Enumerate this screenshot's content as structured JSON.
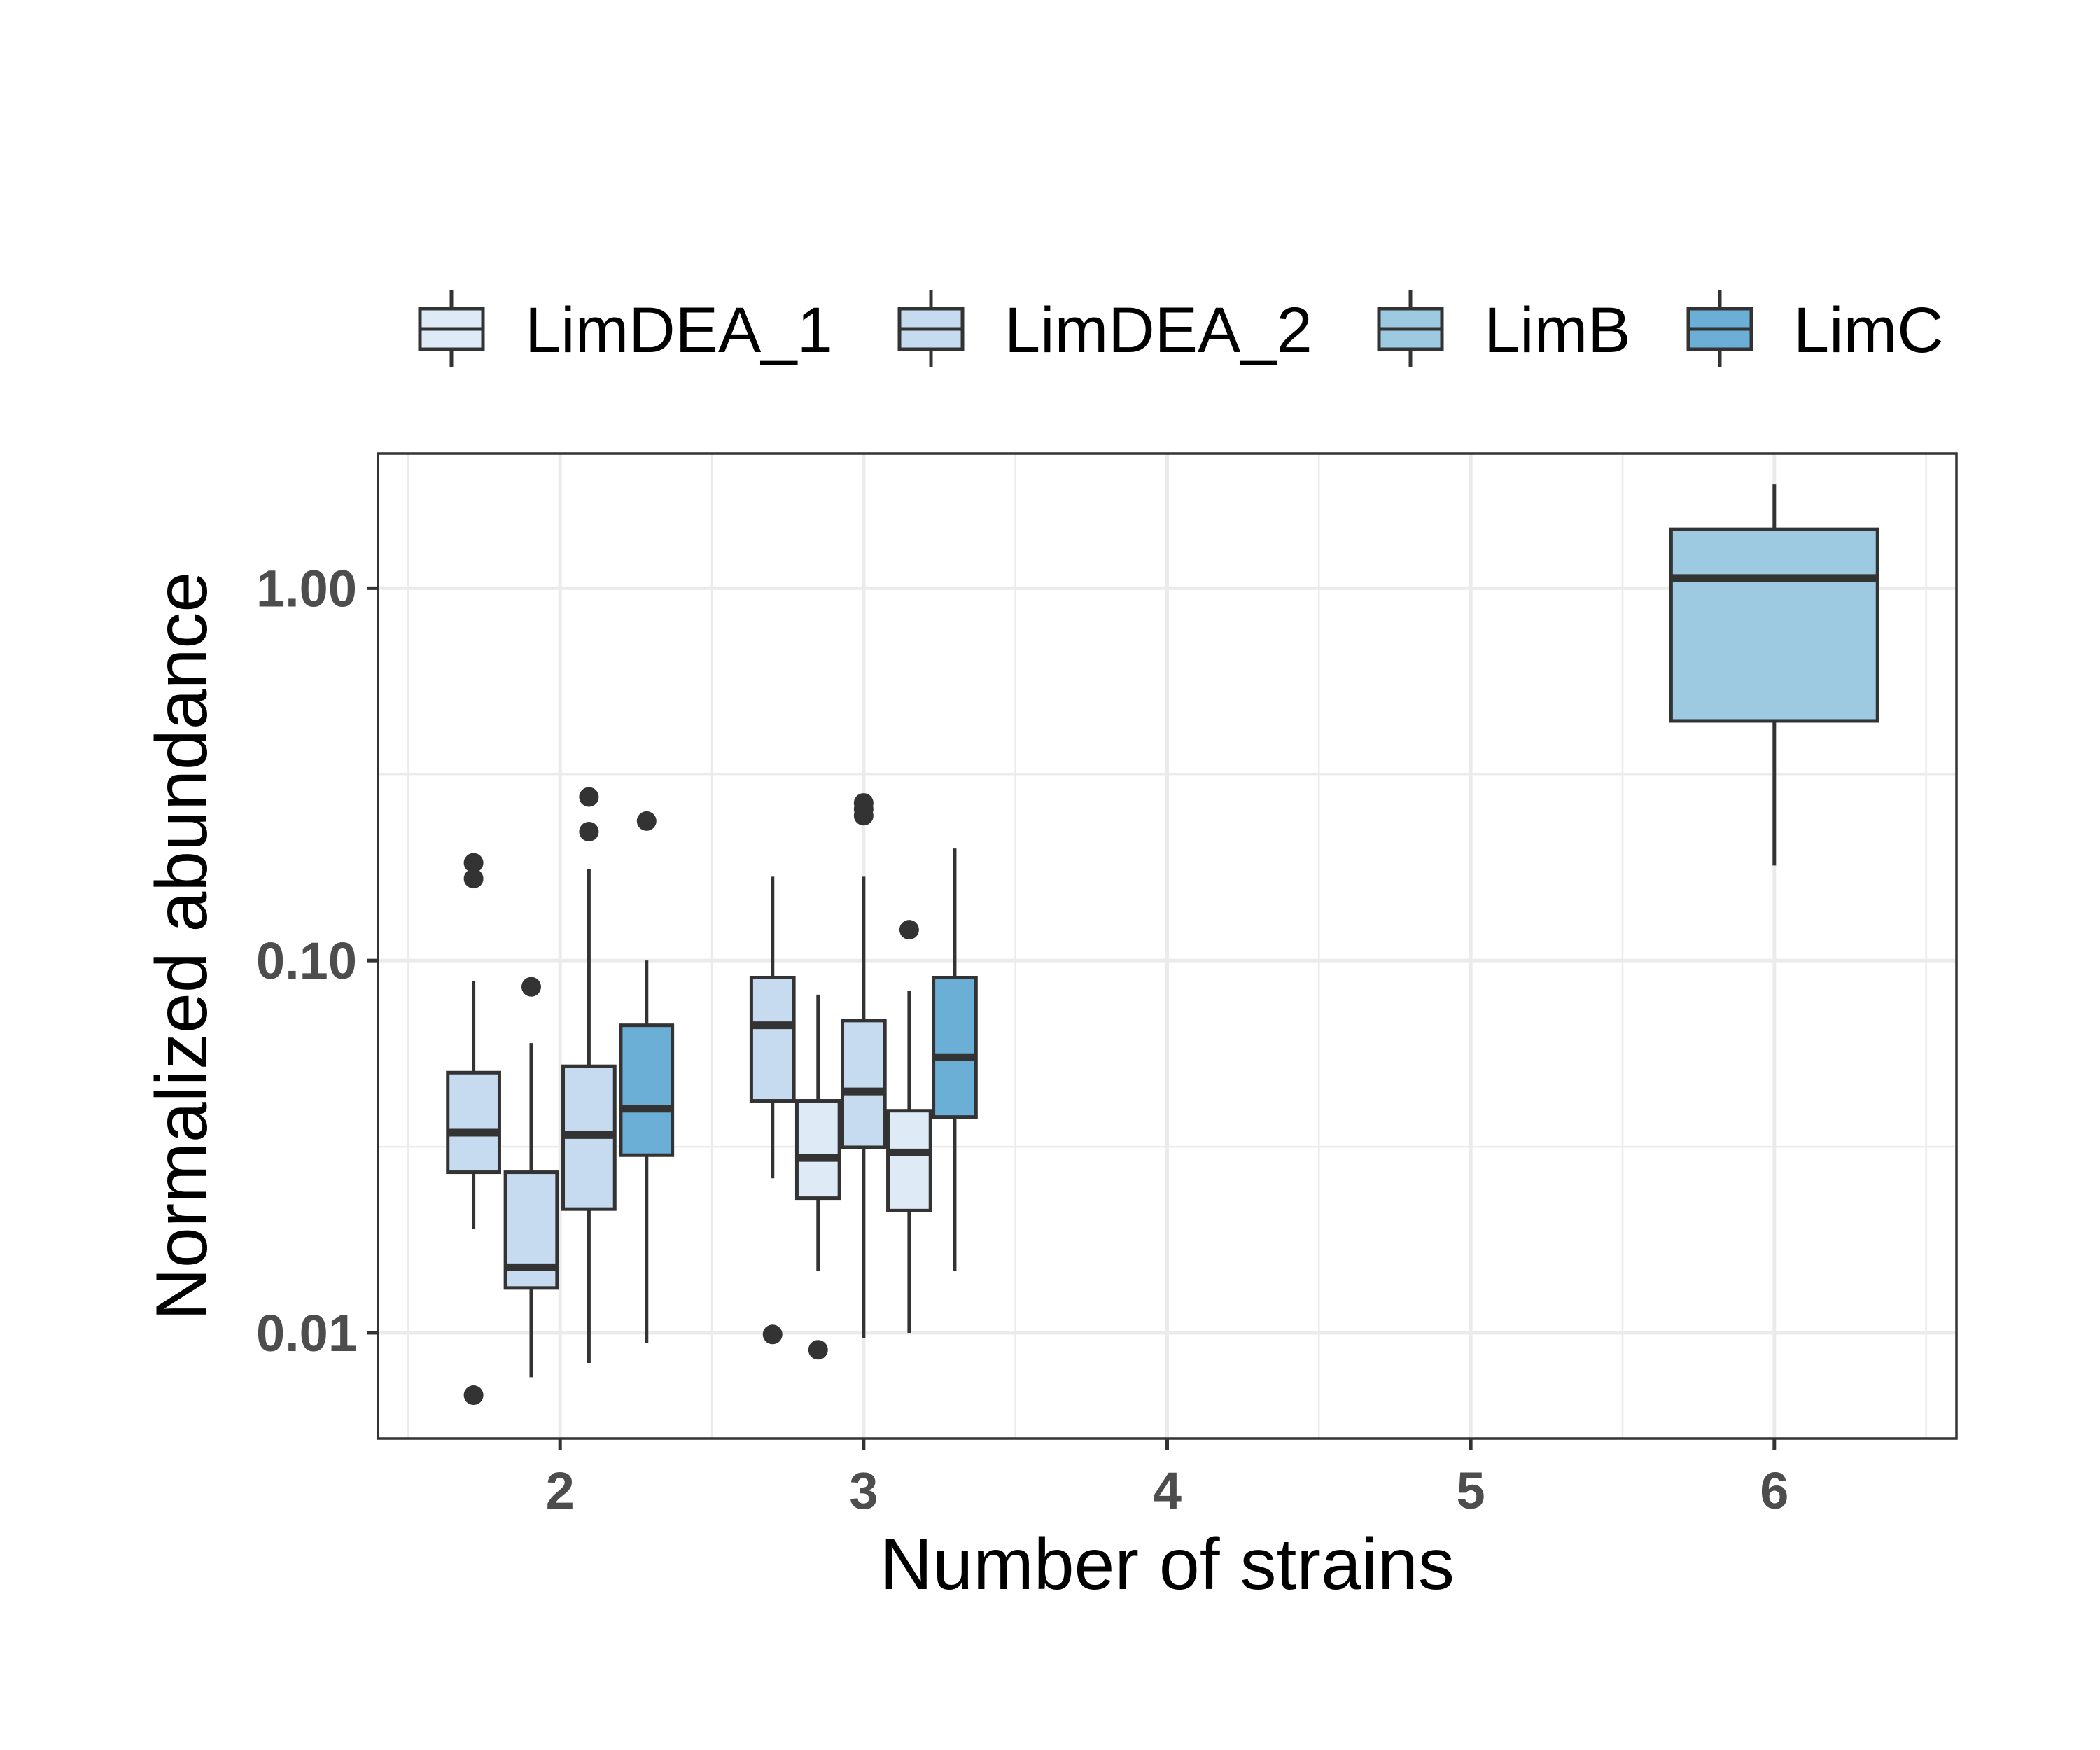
{
  "chart_data": {
    "type": "boxplot",
    "xlabel": "Number of strains",
    "ylabel": "Normalized abundance",
    "y_scale": "log10",
    "ylim": [
      0.0052,
      2.3
    ],
    "xlim": [
      1.4,
      6.6
    ],
    "x_ticks": [
      2,
      3,
      4,
      5,
      6
    ],
    "y_ticks": [
      {
        "value": 0.01,
        "label": "0.01"
      },
      {
        "value": 0.1,
        "label": "0.10"
      },
      {
        "value": 1.0,
        "label": "1.00"
      }
    ],
    "grid": true,
    "legend_position": "top",
    "series": [
      {
        "name": "LimDEA_1",
        "color": "#deebf7"
      },
      {
        "name": "LimDEA_2",
        "color": "#c6dbef"
      },
      {
        "name": "LimB",
        "color": "#9ecae1"
      },
      {
        "name": "LimC",
        "color": "#6baed6"
      }
    ],
    "boxes": [
      {
        "x": 2,
        "series": "LimDEA_2",
        "offset": -0.285,
        "lower": 0.019,
        "q1": 0.027,
        "median": 0.0345,
        "q3": 0.05,
        "upper": 0.088,
        "outliers": [
          0.183,
          0.166,
          0.0068
        ]
      },
      {
        "x": 2,
        "series": "LimDEA_2",
        "offset": -0.095,
        "lower": 0.0076,
        "q1": 0.0132,
        "median": 0.015,
        "q3": 0.027,
        "upper": 0.06,
        "outliers": [
          0.085
        ]
      },
      {
        "x": 2,
        "series": "LimDEA_2",
        "offset": 0.095,
        "lower": 0.0083,
        "q1": 0.0215,
        "median": 0.034,
        "q3": 0.052,
        "upper": 0.176,
        "outliers": [
          0.275,
          0.222
        ]
      },
      {
        "x": 2,
        "series": "LimC",
        "offset": 0.285,
        "lower": 0.0094,
        "q1": 0.03,
        "median": 0.04,
        "q3": 0.067,
        "upper": 0.1,
        "outliers": [
          0.237
        ]
      },
      {
        "x": 3,
        "series": "LimDEA_2",
        "offset": -0.3,
        "lower": 0.026,
        "q1": 0.042,
        "median": 0.067,
        "q3": 0.09,
        "upper": 0.168,
        "outliers": [
          0.0099
        ]
      },
      {
        "x": 3,
        "series": "LimDEA_1",
        "offset": -0.15,
        "lower": 0.0147,
        "q1": 0.023,
        "median": 0.0295,
        "q3": 0.042,
        "upper": 0.081,
        "outliers": [
          0.009
        ]
      },
      {
        "x": 3,
        "series": "LimDEA_2",
        "offset": 0.0,
        "lower": 0.0097,
        "q1": 0.0315,
        "median": 0.0445,
        "q3": 0.069,
        "upper": 0.168,
        "outliers": [
          0.265,
          0.255,
          0.245
        ]
      },
      {
        "x": 3,
        "series": "LimDEA_1",
        "offset": 0.15,
        "lower": 0.01,
        "q1": 0.0213,
        "median": 0.0305,
        "q3": 0.0395,
        "upper": 0.083,
        "outliers": [
          0.121
        ]
      },
      {
        "x": 3,
        "series": "LimC",
        "offset": 0.3,
        "lower": 0.0147,
        "q1": 0.038,
        "median": 0.055,
        "q3": 0.09,
        "upper": 0.2,
        "outliers": []
      },
      {
        "x": 6,
        "series": "LimB",
        "offset": 0.0,
        "lower": 0.18,
        "q1": 0.44,
        "median": 1.065,
        "q3": 1.44,
        "upper": 1.9,
        "outliers": []
      }
    ],
    "box_half_widths": [
      0.085,
      0.085,
      0.085,
      0.085,
      0.07,
      0.07,
      0.07,
      0.07,
      0.07,
      0.34
    ]
  }
}
